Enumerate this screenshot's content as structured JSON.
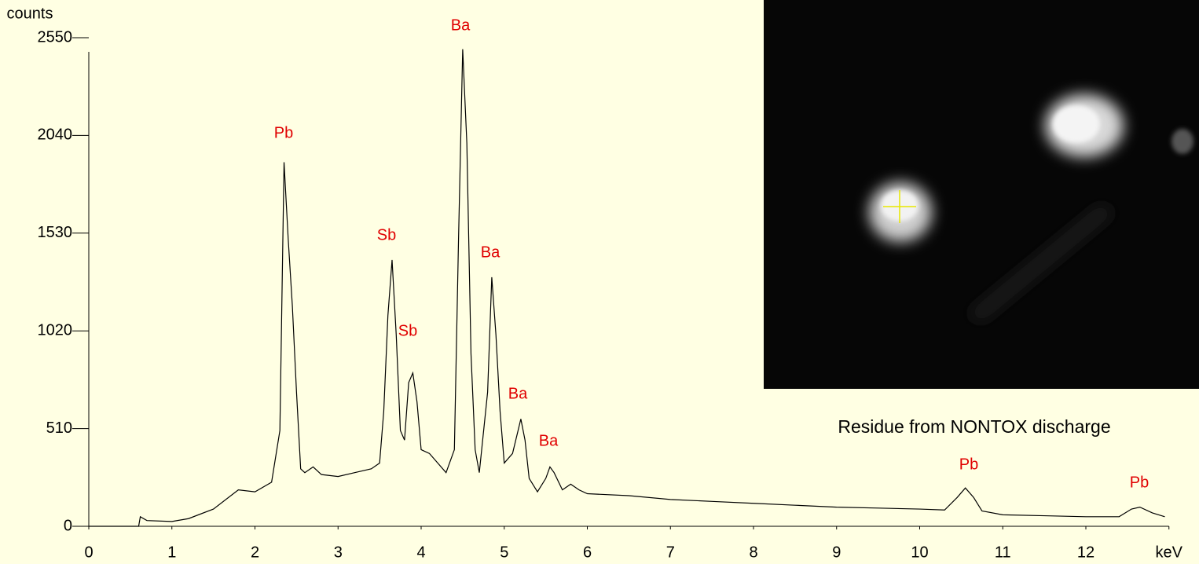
{
  "chart_data": {
    "type": "line",
    "y_label": "counts",
    "x": [
      0,
      0.6,
      0.62,
      0.7,
      1.0,
      1.2,
      1.5,
      1.8,
      2.0,
      2.2,
      2.3,
      2.35,
      2.4,
      2.45,
      2.5,
      2.55,
      2.6,
      2.7,
      2.8,
      3.0,
      3.2,
      3.4,
      3.5,
      3.55,
      3.6,
      3.65,
      3.7,
      3.75,
      3.8,
      3.85,
      3.9,
      3.95,
      4.0,
      4.1,
      4.2,
      4.3,
      4.4,
      4.45,
      4.5,
      4.55,
      4.6,
      4.65,
      4.7,
      4.8,
      4.85,
      4.9,
      4.95,
      5.0,
      5.1,
      5.2,
      5.25,
      5.3,
      5.4,
      5.5,
      5.55,
      5.6,
      5.7,
      5.8,
      5.9,
      6.0,
      6.5,
      7.0,
      7.5,
      8.0,
      8.5,
      9.0,
      9.5,
      10.0,
      10.3,
      10.45,
      10.55,
      10.65,
      10.75,
      11.0,
      11.5,
      12.0,
      12.4,
      12.55,
      12.65,
      12.8,
      12.95
    ],
    "values": [
      0,
      0,
      50,
      30,
      25,
      40,
      90,
      190,
      180,
      230,
      500,
      1900,
      1500,
      1150,
      700,
      300,
      280,
      310,
      270,
      260,
      280,
      300,
      330,
      600,
      1100,
      1390,
      1000,
      500,
      450,
      750,
      800,
      650,
      400,
      380,
      330,
      280,
      400,
      1500,
      2490,
      2000,
      900,
      400,
      280,
      700,
      1300,
      1000,
      600,
      330,
      380,
      560,
      450,
      250,
      180,
      250,
      310,
      280,
      190,
      220,
      190,
      170,
      160,
      140,
      130,
      120,
      110,
      100,
      95,
      90,
      85,
      150,
      200,
      150,
      80,
      60,
      55,
      50,
      50,
      90,
      100,
      70,
      50
    ],
    "color": "#000000",
    "xlim": [
      0,
      13
    ],
    "xticks": [
      0,
      1,
      2,
      3,
      4,
      5,
      6,
      7,
      8,
      9,
      10,
      11,
      12,
      {
        "value": 13,
        "label": "keV"
      }
    ],
    "ylim": [
      0,
      2550
    ],
    "yticks": [
      0,
      510,
      1020,
      1530,
      2040,
      2550
    ],
    "annotations": [
      "Pb",
      "Sb",
      "Sb",
      "Ba",
      "Ba",
      "Ba",
      "Ba",
      "Pb",
      "Pb"
    ],
    "annotation_color": "#e00000",
    "image_caption": "Residue from NONTOX discharge"
  }
}
